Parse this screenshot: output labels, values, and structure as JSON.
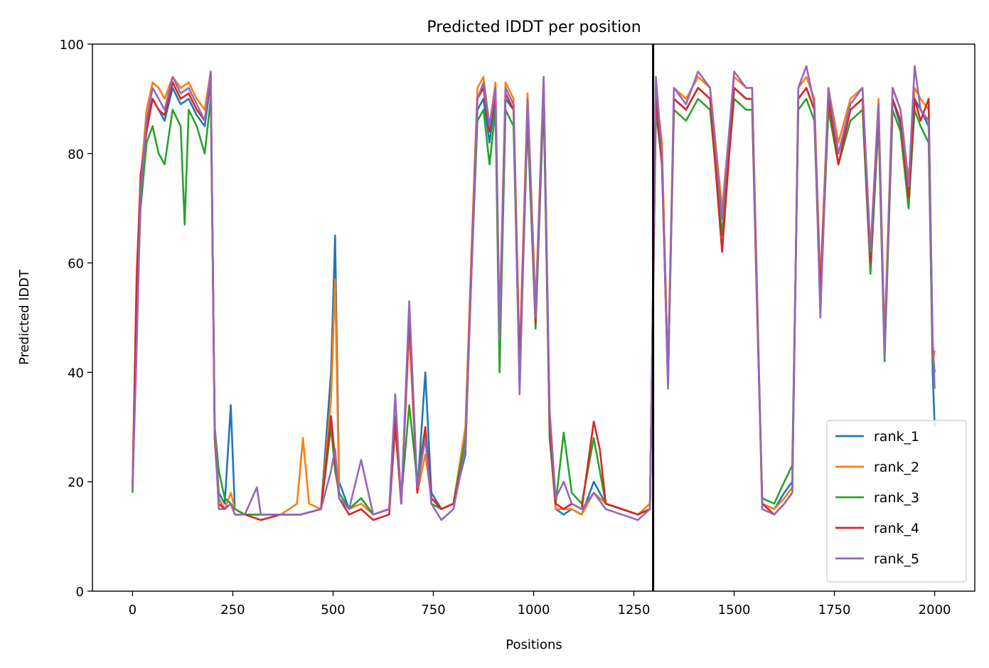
{
  "chart_data": {
    "type": "line",
    "title": "Predicted lDDT per position",
    "xlabel": "Positions",
    "ylabel": "Predicted lDDT",
    "xlim": [
      -100,
      2100
    ],
    "ylim": [
      0,
      100
    ],
    "xticks": [
      0,
      250,
      500,
      750,
      1000,
      1250,
      1500,
      1750,
      2000
    ],
    "yticks": [
      0,
      20,
      40,
      60,
      80,
      100
    ],
    "grid": false,
    "legend_position": "lower-right",
    "vertical_line_x": 1298,
    "vertical_line_color": "#000000",
    "series": [
      {
        "name": "rank_1",
        "color": "#1f77b4",
        "x": [
          0,
          10,
          20,
          35,
          50,
          65,
          80,
          100,
          120,
          140,
          160,
          180,
          195,
          205,
          215,
          230,
          245,
          255,
          280,
          320,
          370,
          420,
          470,
          495,
          505,
          515,
          540,
          570,
          600,
          640,
          655,
          670,
          690,
          710,
          730,
          745,
          770,
          800,
          830,
          845,
          860,
          875,
          890,
          905,
          915,
          930,
          950,
          965,
          985,
          1005,
          1025,
          1040,
          1055,
          1075,
          1095,
          1120,
          1150,
          1180,
          1220,
          1260,
          1290,
          1305,
          1320,
          1335,
          1350,
          1380,
          1410,
          1440,
          1470,
          1500,
          1530,
          1545,
          1555,
          1570,
          1600,
          1625,
          1645,
          1660,
          1680,
          1700,
          1715,
          1735,
          1760,
          1790,
          1820,
          1840,
          1860,
          1875,
          1895,
          1915,
          1935,
          1950,
          1965,
          1985,
          1995,
          2000
        ],
        "y": [
          19,
          50,
          72,
          85,
          90,
          88,
          86,
          92,
          89,
          90,
          87,
          85,
          93,
          30,
          18,
          16,
          34,
          15,
          14,
          14,
          14,
          14,
          15,
          40,
          65,
          20,
          15,
          17,
          14,
          15,
          32,
          16,
          50,
          18,
          40,
          18,
          15,
          16,
          25,
          60,
          88,
          90,
          82,
          90,
          45,
          90,
          88,
          40,
          88,
          50,
          92,
          30,
          15,
          14,
          15,
          14,
          20,
          16,
          15,
          14,
          15,
          90,
          80,
          40,
          90,
          88,
          92,
          90,
          65,
          92,
          90,
          90,
          60,
          16,
          15,
          18,
          20,
          90,
          92,
          88,
          55,
          90,
          80,
          88,
          90,
          60,
          88,
          45,
          90,
          85,
          70,
          90,
          88,
          85,
          40,
          30
        ]
      },
      {
        "name": "rank_2",
        "color": "#ff7f0e",
        "x": [
          0,
          10,
          20,
          35,
          50,
          65,
          80,
          100,
          120,
          140,
          160,
          180,
          195,
          205,
          215,
          230,
          245,
          255,
          280,
          320,
          370,
          410,
          425,
          440,
          470,
          495,
          505,
          515,
          540,
          570,
          600,
          640,
          655,
          670,
          690,
          710,
          730,
          745,
          770,
          800,
          830,
          845,
          860,
          875,
          890,
          905,
          915,
          930,
          950,
          965,
          985,
          1005,
          1025,
          1040,
          1055,
          1075,
          1095,
          1120,
          1150,
          1180,
          1220,
          1260,
          1290,
          1305,
          1320,
          1335,
          1350,
          1380,
          1410,
          1440,
          1470,
          1500,
          1530,
          1545,
          1555,
          1570,
          1600,
          1625,
          1645,
          1660,
          1680,
          1700,
          1715,
          1735,
          1760,
          1790,
          1820,
          1840,
          1860,
          1875,
          1895,
          1915,
          1935,
          1950,
          1965,
          1985,
          1995,
          2000
        ],
        "y": [
          19,
          58,
          75,
          88,
          93,
          92,
          90,
          94,
          92,
          93,
          90,
          88,
          95,
          28,
          17,
          15,
          18,
          15,
          14,
          14,
          14,
          16,
          28,
          16,
          15,
          35,
          57,
          18,
          15,
          16,
          14,
          15,
          30,
          16,
          48,
          18,
          25,
          17,
          15,
          16,
          30,
          62,
          92,
          94,
          85,
          93,
          48,
          93,
          90,
          42,
          91,
          52,
          94,
          28,
          15,
          15,
          15,
          14,
          18,
          16,
          15,
          14,
          16,
          92,
          82,
          40,
          92,
          90,
          94,
          92,
          70,
          94,
          92,
          92,
          62,
          16,
          15,
          17,
          19,
          92,
          94,
          90,
          56,
          92,
          82,
          90,
          92,
          62,
          90,
          46,
          92,
          88,
          75,
          92,
          90,
          88,
          42,
          44
        ]
      },
      {
        "name": "rank_3",
        "color": "#2ca02c",
        "x": [
          0,
          10,
          20,
          35,
          50,
          65,
          80,
          100,
          120,
          130,
          140,
          160,
          180,
          195,
          205,
          215,
          230,
          245,
          255,
          280,
          320,
          370,
          420,
          470,
          495,
          505,
          515,
          540,
          570,
          600,
          640,
          655,
          670,
          690,
          710,
          730,
          745,
          770,
          800,
          830,
          845,
          860,
          875,
          890,
          905,
          915,
          930,
          950,
          965,
          985,
          1005,
          1025,
          1040,
          1055,
          1075,
          1095,
          1120,
          1150,
          1180,
          1220,
          1260,
          1290,
          1305,
          1320,
          1335,
          1350,
          1380,
          1410,
          1440,
          1470,
          1500,
          1530,
          1545,
          1555,
          1570,
          1600,
          1625,
          1645,
          1660,
          1680,
          1700,
          1715,
          1735,
          1760,
          1790,
          1820,
          1840,
          1860,
          1875,
          1895,
          1915,
          1935,
          1950,
          1965,
          1985,
          1995,
          2000
        ],
        "y": [
          18,
          48,
          70,
          82,
          85,
          80,
          78,
          88,
          85,
          67,
          88,
          85,
          80,
          90,
          30,
          22,
          17,
          16,
          15,
          14,
          14,
          14,
          14,
          15,
          30,
          22,
          18,
          15,
          17,
          14,
          15,
          30,
          17,
          34,
          20,
          30,
          16,
          15,
          16,
          28,
          58,
          86,
          88,
          78,
          88,
          40,
          88,
          85,
          38,
          86,
          48,
          90,
          28,
          16,
          29,
          18,
          16,
          28,
          16,
          15,
          14,
          15,
          88,
          78,
          38,
          88,
          86,
          90,
          88,
          65,
          90,
          88,
          88,
          58,
          17,
          16,
          20,
          23,
          88,
          90,
          86,
          52,
          88,
          78,
          86,
          88,
          58,
          86,
          42,
          88,
          84,
          70,
          88,
          85,
          82,
          42,
          40
        ]
      },
      {
        "name": "rank_4",
        "color": "#d62728",
        "x": [
          0,
          10,
          20,
          35,
          50,
          65,
          80,
          100,
          120,
          140,
          160,
          180,
          195,
          205,
          215,
          230,
          245,
          255,
          280,
          320,
          370,
          420,
          470,
          495,
          505,
          515,
          540,
          570,
          600,
          640,
          655,
          670,
          690,
          710,
          730,
          745,
          770,
          800,
          830,
          845,
          860,
          875,
          890,
          905,
          915,
          930,
          950,
          965,
          985,
          1005,
          1025,
          1040,
          1055,
          1075,
          1095,
          1120,
          1150,
          1165,
          1180,
          1220,
          1260,
          1290,
          1305,
          1320,
          1335,
          1350,
          1380,
          1410,
          1440,
          1470,
          1500,
          1530,
          1545,
          1555,
          1570,
          1600,
          1625,
          1645,
          1660,
          1680,
          1700,
          1715,
          1735,
          1760,
          1790,
          1820,
          1840,
          1860,
          1875,
          1895,
          1915,
          1935,
          1950,
          1965,
          1985,
          1995,
          2000
        ],
        "y": [
          19,
          56,
          76,
          84,
          90,
          88,
          87,
          93,
          90,
          91,
          88,
          86,
          94,
          28,
          16,
          15,
          16,
          14,
          14,
          13,
          14,
          14,
          15,
          32,
          24,
          17,
          14,
          15,
          13,
          14,
          31,
          16,
          50,
          18,
          30,
          17,
          15,
          16,
          26,
          60,
          90,
          92,
          84,
          91,
          47,
          91,
          88,
          40,
          89,
          49,
          93,
          30,
          16,
          15,
          16,
          15,
          31,
          26,
          16,
          15,
          14,
          15,
          90,
          78,
          38,
          90,
          88,
          92,
          90,
          62,
          92,
          90,
          90,
          58,
          16,
          14,
          16,
          18,
          90,
          92,
          88,
          54,
          90,
          78,
          88,
          90,
          60,
          88,
          44,
          90,
          86,
          72,
          90,
          86,
          90,
          44,
          40
        ]
      },
      {
        "name": "rank_5",
        "color": "#9467bd",
        "x": [
          0,
          10,
          20,
          35,
          50,
          65,
          80,
          100,
          120,
          140,
          160,
          180,
          195,
          205,
          215,
          230,
          245,
          255,
          280,
          310,
          320,
          370,
          420,
          470,
          495,
          505,
          515,
          540,
          570,
          600,
          640,
          655,
          670,
          690,
          710,
          730,
          745,
          770,
          800,
          830,
          845,
          860,
          875,
          890,
          905,
          915,
          930,
          950,
          965,
          985,
          1005,
          1025,
          1040,
          1055,
          1075,
          1095,
          1120,
          1150,
          1180,
          1220,
          1260,
          1290,
          1305,
          1320,
          1335,
          1350,
          1380,
          1410,
          1440,
          1470,
          1500,
          1530,
          1545,
          1555,
          1570,
          1600,
          1625,
          1645,
          1660,
          1680,
          1700,
          1715,
          1735,
          1760,
          1790,
          1820,
          1840,
          1860,
          1875,
          1895,
          1915,
          1935,
          1950,
          1965,
          1985,
          1995,
          2000
        ],
        "y": [
          19,
          44,
          73,
          86,
          92,
          90,
          88,
          94,
          91,
          92,
          89,
          86,
          95,
          30,
          15,
          15,
          16,
          14,
          14,
          19,
          14,
          14,
          14,
          15,
          22,
          26,
          17,
          15,
          24,
          14,
          15,
          36,
          16,
          53,
          19,
          28,
          16,
          13,
          15,
          26,
          58,
          90,
          93,
          85,
          92,
          46,
          92,
          89,
          36,
          90,
          50,
          94,
          33,
          17,
          20,
          16,
          15,
          18,
          15,
          14,
          13,
          15,
          94,
          80,
          37,
          92,
          89,
          95,
          92,
          68,
          95,
          92,
          92,
          60,
          15,
          14,
          16,
          18,
          92,
          96,
          89,
          50,
          92,
          80,
          89,
          92,
          62,
          89,
          43,
          92,
          88,
          74,
          96,
          88,
          86,
          46,
          37
        ]
      }
    ]
  }
}
